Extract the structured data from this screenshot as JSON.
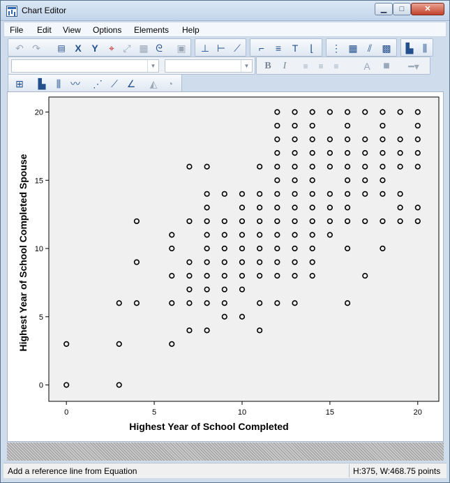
{
  "window": {
    "title": "Chart Editor",
    "minimize": "▁",
    "maximize": "□",
    "close": "✕"
  },
  "menu": [
    "File",
    "Edit",
    "View",
    "Options",
    "Elements",
    "Help"
  ],
  "toolbar": {
    "undo_icon": "undo-icon",
    "redo_icon": "redo-icon",
    "font_combo_value": "",
    "size_combo_value": "",
    "bold_label": "B",
    "italic_label": "I"
  },
  "chart_data": {
    "type": "scatter",
    "xlabel": "Highest Year of School Completed",
    "ylabel": "Highest Year of School Completed Spouse",
    "xlim": [
      -1,
      21.2
    ],
    "ylim": [
      -1.2,
      21.1
    ],
    "xticks": [
      0,
      5,
      10,
      15,
      20
    ],
    "yticks": [
      0,
      5,
      10,
      15,
      20
    ],
    "grid": false,
    "marker": "hollow-circle",
    "background": "#f0f0f0",
    "points": [
      [
        0,
        0
      ],
      [
        0,
        3
      ],
      [
        3,
        0
      ],
      [
        3,
        3
      ],
      [
        3,
        6
      ],
      [
        4,
        6
      ],
      [
        4,
        9
      ],
      [
        4,
        12
      ],
      [
        6,
        3
      ],
      [
        6,
        6
      ],
      [
        6,
        8
      ],
      [
        6,
        10
      ],
      [
        6,
        11
      ],
      [
        7,
        4
      ],
      [
        7,
        6
      ],
      [
        7,
        7
      ],
      [
        7,
        8
      ],
      [
        7,
        9
      ],
      [
        7,
        12
      ],
      [
        7,
        16
      ],
      [
        8,
        4
      ],
      [
        8,
        6
      ],
      [
        8,
        7
      ],
      [
        8,
        8
      ],
      [
        8,
        9
      ],
      [
        8,
        10
      ],
      [
        8,
        11
      ],
      [
        8,
        12
      ],
      [
        8,
        13
      ],
      [
        8,
        14
      ],
      [
        8,
        16
      ],
      [
        9,
        5
      ],
      [
        9,
        6
      ],
      [
        9,
        7
      ],
      [
        9,
        8
      ],
      [
        9,
        9
      ],
      [
        9,
        10
      ],
      [
        9,
        11
      ],
      [
        9,
        12
      ],
      [
        9,
        14
      ],
      [
        10,
        5
      ],
      [
        10,
        7
      ],
      [
        10,
        8
      ],
      [
        10,
        9
      ],
      [
        10,
        10
      ],
      [
        10,
        11
      ],
      [
        10,
        12
      ],
      [
        10,
        13
      ],
      [
        10,
        14
      ],
      [
        11,
        4
      ],
      [
        11,
        6
      ],
      [
        11,
        8
      ],
      [
        11,
        9
      ],
      [
        11,
        10
      ],
      [
        11,
        11
      ],
      [
        11,
        12
      ],
      [
        11,
        13
      ],
      [
        11,
        14
      ],
      [
        11,
        16
      ],
      [
        12,
        6
      ],
      [
        12,
        8
      ],
      [
        12,
        9
      ],
      [
        12,
        10
      ],
      [
        12,
        11
      ],
      [
        12,
        12
      ],
      [
        12,
        13
      ],
      [
        12,
        14
      ],
      [
        12,
        15
      ],
      [
        12,
        16
      ],
      [
        12,
        17
      ],
      [
        12,
        18
      ],
      [
        12,
        19
      ],
      [
        12,
        20
      ],
      [
        13,
        6
      ],
      [
        13,
        8
      ],
      [
        13,
        9
      ],
      [
        13,
        10
      ],
      [
        13,
        11
      ],
      [
        13,
        12
      ],
      [
        13,
        13
      ],
      [
        13,
        14
      ],
      [
        13,
        15
      ],
      [
        13,
        16
      ],
      [
        13,
        17
      ],
      [
        13,
        18
      ],
      [
        13,
        19
      ],
      [
        13,
        20
      ],
      [
        14,
        8
      ],
      [
        14,
        9
      ],
      [
        14,
        10
      ],
      [
        14,
        11
      ],
      [
        14,
        12
      ],
      [
        14,
        13
      ],
      [
        14,
        14
      ],
      [
        14,
        15
      ],
      [
        14,
        16
      ],
      [
        14,
        17
      ],
      [
        14,
        18
      ],
      [
        14,
        19
      ],
      [
        14,
        20
      ],
      [
        15,
        11
      ],
      [
        15,
        12
      ],
      [
        15,
        13
      ],
      [
        15,
        14
      ],
      [
        15,
        16
      ],
      [
        15,
        17
      ],
      [
        15,
        18
      ],
      [
        15,
        20
      ],
      [
        16,
        6
      ],
      [
        16,
        10
      ],
      [
        16,
        12
      ],
      [
        16,
        13
      ],
      [
        16,
        14
      ],
      [
        16,
        15
      ],
      [
        16,
        16
      ],
      [
        16,
        17
      ],
      [
        16,
        18
      ],
      [
        16,
        19
      ],
      [
        16,
        20
      ],
      [
        17,
        8
      ],
      [
        17,
        12
      ],
      [
        17,
        14
      ],
      [
        17,
        15
      ],
      [
        17,
        16
      ],
      [
        17,
        17
      ],
      [
        17,
        18
      ],
      [
        17,
        20
      ],
      [
        18,
        10
      ],
      [
        18,
        12
      ],
      [
        18,
        14
      ],
      [
        18,
        15
      ],
      [
        18,
        16
      ],
      [
        18,
        17
      ],
      [
        18,
        18
      ],
      [
        18,
        19
      ],
      [
        18,
        20
      ],
      [
        19,
        12
      ],
      [
        19,
        13
      ],
      [
        19,
        14
      ],
      [
        19,
        16
      ],
      [
        19,
        17
      ],
      [
        19,
        18
      ],
      [
        19,
        20
      ],
      [
        20,
        12
      ],
      [
        20,
        13
      ],
      [
        20,
        16
      ],
      [
        20,
        17
      ],
      [
        20,
        18
      ],
      [
        20,
        19
      ],
      [
        20,
        20
      ]
    ]
  },
  "status": {
    "left": "Add a reference line from Equation",
    "right": "H:375, W:468.75 points"
  }
}
